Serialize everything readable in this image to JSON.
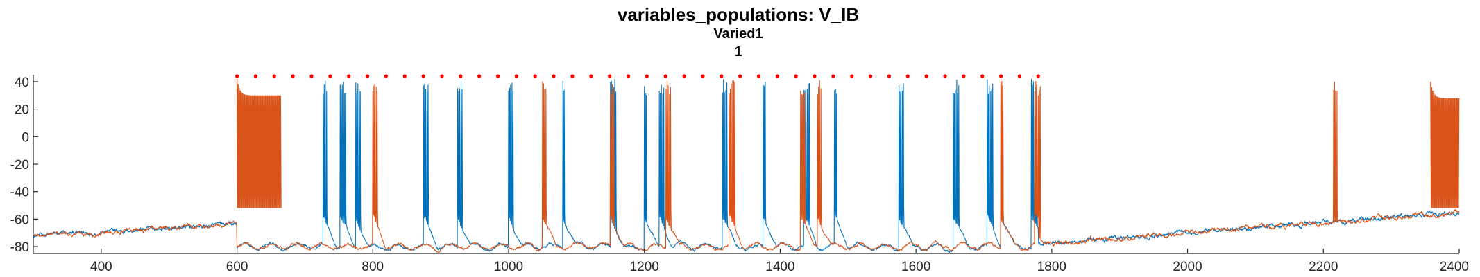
{
  "chart_data": {
    "type": "line",
    "title": "variables_populations: V_IB",
    "subtitle": "Varied1",
    "subtitle2": "1",
    "xlabel": "",
    "ylabel": "",
    "xlim": [
      300,
      2400
    ],
    "ylim": [
      -85,
      45
    ],
    "xticks": [
      400,
      600,
      800,
      1000,
      1200,
      1400,
      1600,
      1800,
      2000,
      2200,
      2400
    ],
    "yticks": [
      40,
      20,
      0,
      -20,
      -40,
      -60,
      -80
    ],
    "grid": false,
    "legend": "none",
    "colors": {
      "blue": "#0072BD",
      "orange": "#D95319",
      "marker": "#FF0000",
      "axis": "#262626"
    },
    "baseline_rest_mV": -72,
    "bursts_blue": [
      600,
      727,
      752,
      775,
      875,
      925,
      1000,
      1080,
      1150,
      1200,
      1222,
      1315,
      1375,
      1435,
      1480,
      1575,
      1655,
      1705,
      1725,
      1770,
      2355
    ],
    "bursts_orange": [
      600,
      800,
      1050,
      1150,
      1232,
      1325,
      1430,
      1455,
      1725,
      1775,
      2215,
      2360
    ],
    "burst_segments": [
      {
        "start": 600,
        "end": 665,
        "min": -52,
        "max": 30
      },
      {
        "start": 2358,
        "end": 2400,
        "min": -52,
        "max": 28
      }
    ],
    "series": [
      {
        "key": "blue",
        "color": "#0072BD"
      },
      {
        "key": "orange",
        "color": "#D95319"
      }
    ],
    "marker_x_range": [
      600,
      1780
    ],
    "marker_y": 44,
    "marker_count": 44
  }
}
